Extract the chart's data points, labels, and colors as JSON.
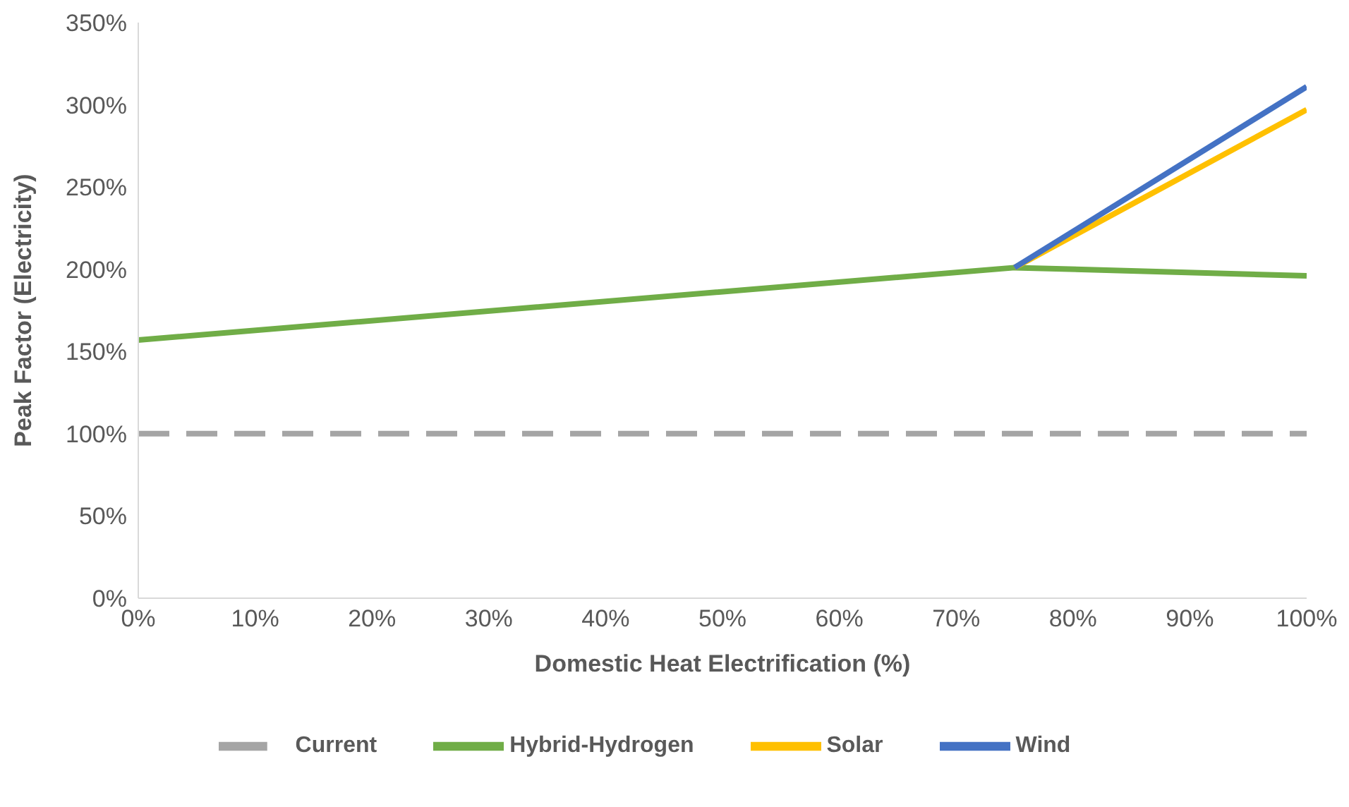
{
  "chart_data": {
    "type": "line",
    "xlabel": "Domestic Heat Electrification (%)",
    "ylabel": "Peak Factor (Electricity)",
    "series": [
      {
        "name": "Current",
        "color": "#a5a5a5",
        "line_style": "dashed",
        "x": [
          0,
          100
        ],
        "values": [
          100,
          100
        ]
      },
      {
        "name": "Hybrid-Hydrogen",
        "color": "#70ad47",
        "x": [
          0,
          75,
          100
        ],
        "values": [
          157,
          201,
          196
        ]
      },
      {
        "name": "Solar",
        "color": "#ffc000",
        "x": [
          75,
          100
        ],
        "values": [
          201,
          297
        ]
      },
      {
        "name": "Wind",
        "color": "#4472c4",
        "x": [
          75,
          100
        ],
        "values": [
          201,
          311
        ]
      }
    ],
    "xlim": [
      0,
      100
    ],
    "xticks": [
      {
        "value": 0,
        "label": "0%"
      },
      {
        "value": 10,
        "label": "10%"
      },
      {
        "value": 20,
        "label": "20%"
      },
      {
        "value": 30,
        "label": "30%"
      },
      {
        "value": 40,
        "label": "40%"
      },
      {
        "value": 50,
        "label": "50%"
      },
      {
        "value": 60,
        "label": "60%"
      },
      {
        "value": 70,
        "label": "70%"
      },
      {
        "value": 80,
        "label": "80%"
      },
      {
        "value": 90,
        "label": "90%"
      },
      {
        "value": 100,
        "label": "100%"
      }
    ],
    "ylim": [
      0,
      350
    ],
    "yticks": [
      {
        "value": 0,
        "label": "0%"
      },
      {
        "value": 50,
        "label": "50%"
      },
      {
        "value": 100,
        "label": "100%"
      },
      {
        "value": 150,
        "label": "150%"
      },
      {
        "value": 200,
        "label": "200%"
      },
      {
        "value": 250,
        "label": "250%"
      },
      {
        "value": 300,
        "label": "300%"
      },
      {
        "value": 350,
        "label": "350%"
      }
    ],
    "grid": false,
    "legend": "bottom",
    "marker": "none"
  }
}
